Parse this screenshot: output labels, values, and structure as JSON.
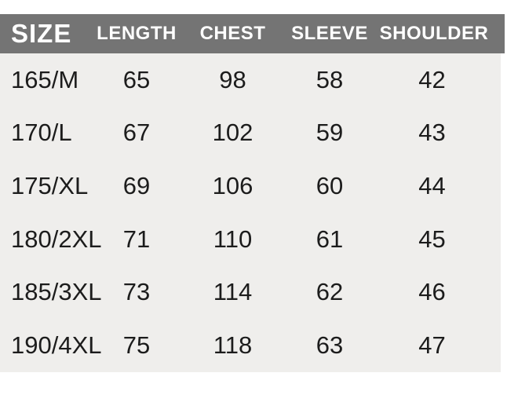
{
  "colors": {
    "page_bg": "#ffffff",
    "header_bg": "#747474",
    "header_text": "#ffffff",
    "body_bg": "#efeeec",
    "text": "#1c1c1c"
  },
  "chart_data": {
    "type": "table",
    "columns": [
      "SIZE",
      "LENGTH",
      "CHEST",
      "SLEEVE",
      "SHOULDER"
    ],
    "rows": [
      [
        "165/M",
        "65",
        "98",
        "58",
        "42"
      ],
      [
        "170/L",
        "67",
        "102",
        "59",
        "43"
      ],
      [
        "175/XL",
        "69",
        "106",
        "60",
        "44"
      ],
      [
        "180/2XL",
        "71",
        "110",
        "61",
        "45"
      ],
      [
        "185/3XL",
        "73",
        "114",
        "62",
        "46"
      ],
      [
        "190/4XL",
        "75",
        "118",
        "63",
        "47"
      ]
    ]
  }
}
